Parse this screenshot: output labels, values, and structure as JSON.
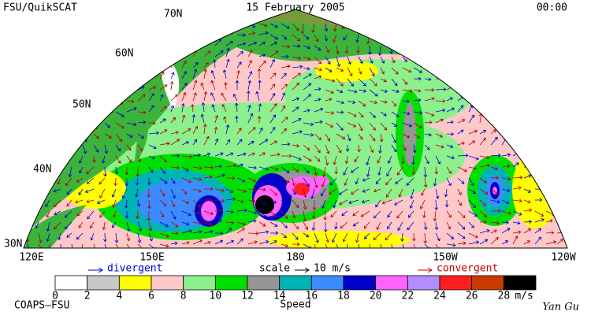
{
  "header": {
    "title": "FSU/QuikSCAT",
    "date": "15 February 2005",
    "time": "00:00"
  },
  "map": {
    "latitude_labels": [
      "70N",
      "60N",
      "50N",
      "40N",
      "30N"
    ],
    "longitude_labels": [
      "120E",
      "150E",
      "180",
      "150W",
      "120W"
    ]
  },
  "legend": {
    "divergent": "divergent",
    "scale": "scale",
    "scale_value": "10 m/s",
    "convergent": "convergent"
  },
  "colorbar": {
    "labels": [
      "0",
      "2",
      "4",
      "6",
      "8",
      "10",
      "12",
      "14",
      "16",
      "18",
      "20",
      "22",
      "24",
      "26",
      "28"
    ],
    "unit": "m/s",
    "title": "Speed"
  },
  "footer": {
    "left": "COAPS–FSU",
    "right": "Yan Gu"
  }
}
